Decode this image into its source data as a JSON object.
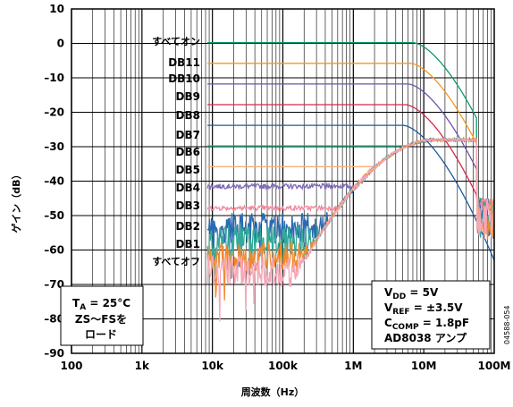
{
  "chart_data": {
    "type": "line",
    "xlabel": "周波数（Hz）",
    "ylabel": "ゲイン（dB）",
    "x_scale": "log",
    "xlim": [
      100,
      100000000
    ],
    "ylim": [
      -90,
      10
    ],
    "x_ticks": [
      {
        "value": 100,
        "label": "100"
      },
      {
        "value": 1000,
        "label": "1k"
      },
      {
        "value": 10000,
        "label": "10k"
      },
      {
        "value": 100000,
        "label": "100k"
      },
      {
        "value": 1000000,
        "label": "1M"
      },
      {
        "value": 10000000,
        "label": "10M"
      },
      {
        "value": 100000000,
        "label": "100M"
      }
    ],
    "y_ticks": [
      {
        "value": 10,
        "label": "10"
      },
      {
        "value": 0,
        "label": "0"
      },
      {
        "value": -10,
        "label": "–10"
      },
      {
        "value": -20,
        "label": "–20"
      },
      {
        "value": -30,
        "label": "–30"
      },
      {
        "value": -40,
        "label": "–40"
      },
      {
        "value": -50,
        "label": "–50"
      },
      {
        "value": -60,
        "label": "–60"
      },
      {
        "value": -70,
        "label": "–70"
      },
      {
        "value": -80,
        "label": "–80"
      },
      {
        "value": -90,
        "label": "–90"
      }
    ],
    "grid": true,
    "series": [
      {
        "name": "すべてオン",
        "color": "#0a9a6a",
        "kind": "flat",
        "level": 0.2
      },
      {
        "name": "DB11",
        "color": "#f39a1a",
        "kind": "flat",
        "level": -5.8
      },
      {
        "name": "DB10",
        "color": "#6a55a5",
        "kind": "flat",
        "level": -11.8
      },
      {
        "name": "DB9",
        "color": "#d8264a",
        "kind": "flat",
        "level": -17.8
      },
      {
        "name": "DB8",
        "color": "#1a5aa0",
        "kind": "flat",
        "level": -23.8
      },
      {
        "name": "DB7",
        "color": "#16a07a",
        "kind": "flat",
        "level": -29.8
      },
      {
        "name": "DB6",
        "color": "#f7b07a",
        "kind": "flat",
        "level": -35.8
      },
      {
        "name": "DB5",
        "color": "#7f6ab5",
        "kind": "flat",
        "level": -41.5
      },
      {
        "name": "DB4",
        "color": "#f08aa0",
        "kind": "flat",
        "level": -47.8
      },
      {
        "name": "DB3",
        "color": "#2a6ab0",
        "kind": "noise",
        "level": -53.5
      },
      {
        "name": "DB2",
        "color": "#33aa99",
        "kind": "noise",
        "level": -57.5
      },
      {
        "name": "DB1",
        "color": "#f08a30",
        "kind": "noise",
        "level": -62
      },
      {
        "name": "すべてオフ",
        "color": "#f5a8b8",
        "kind": "noise",
        "level": -66
      }
    ],
    "annotations": {
      "ta_main": "T",
      "ta_sub": "A",
      "ta_rest": " = 25°C",
      "zs_line1": "ZS～FSを",
      "zs_line2": "ロード",
      "vdd_main": "V",
      "vdd_sub": "DD",
      "vdd_rest": " = 5V",
      "vref_main": "V",
      "vref_sub": "REF",
      "vref_rest": " = ±3.5V",
      "ccomp_main": "C",
      "ccomp_sub": "COMP",
      "ccomp_rest": " = 1.8pF",
      "amp": "AD8038 アンプ",
      "figure_id": "04588-054"
    }
  }
}
